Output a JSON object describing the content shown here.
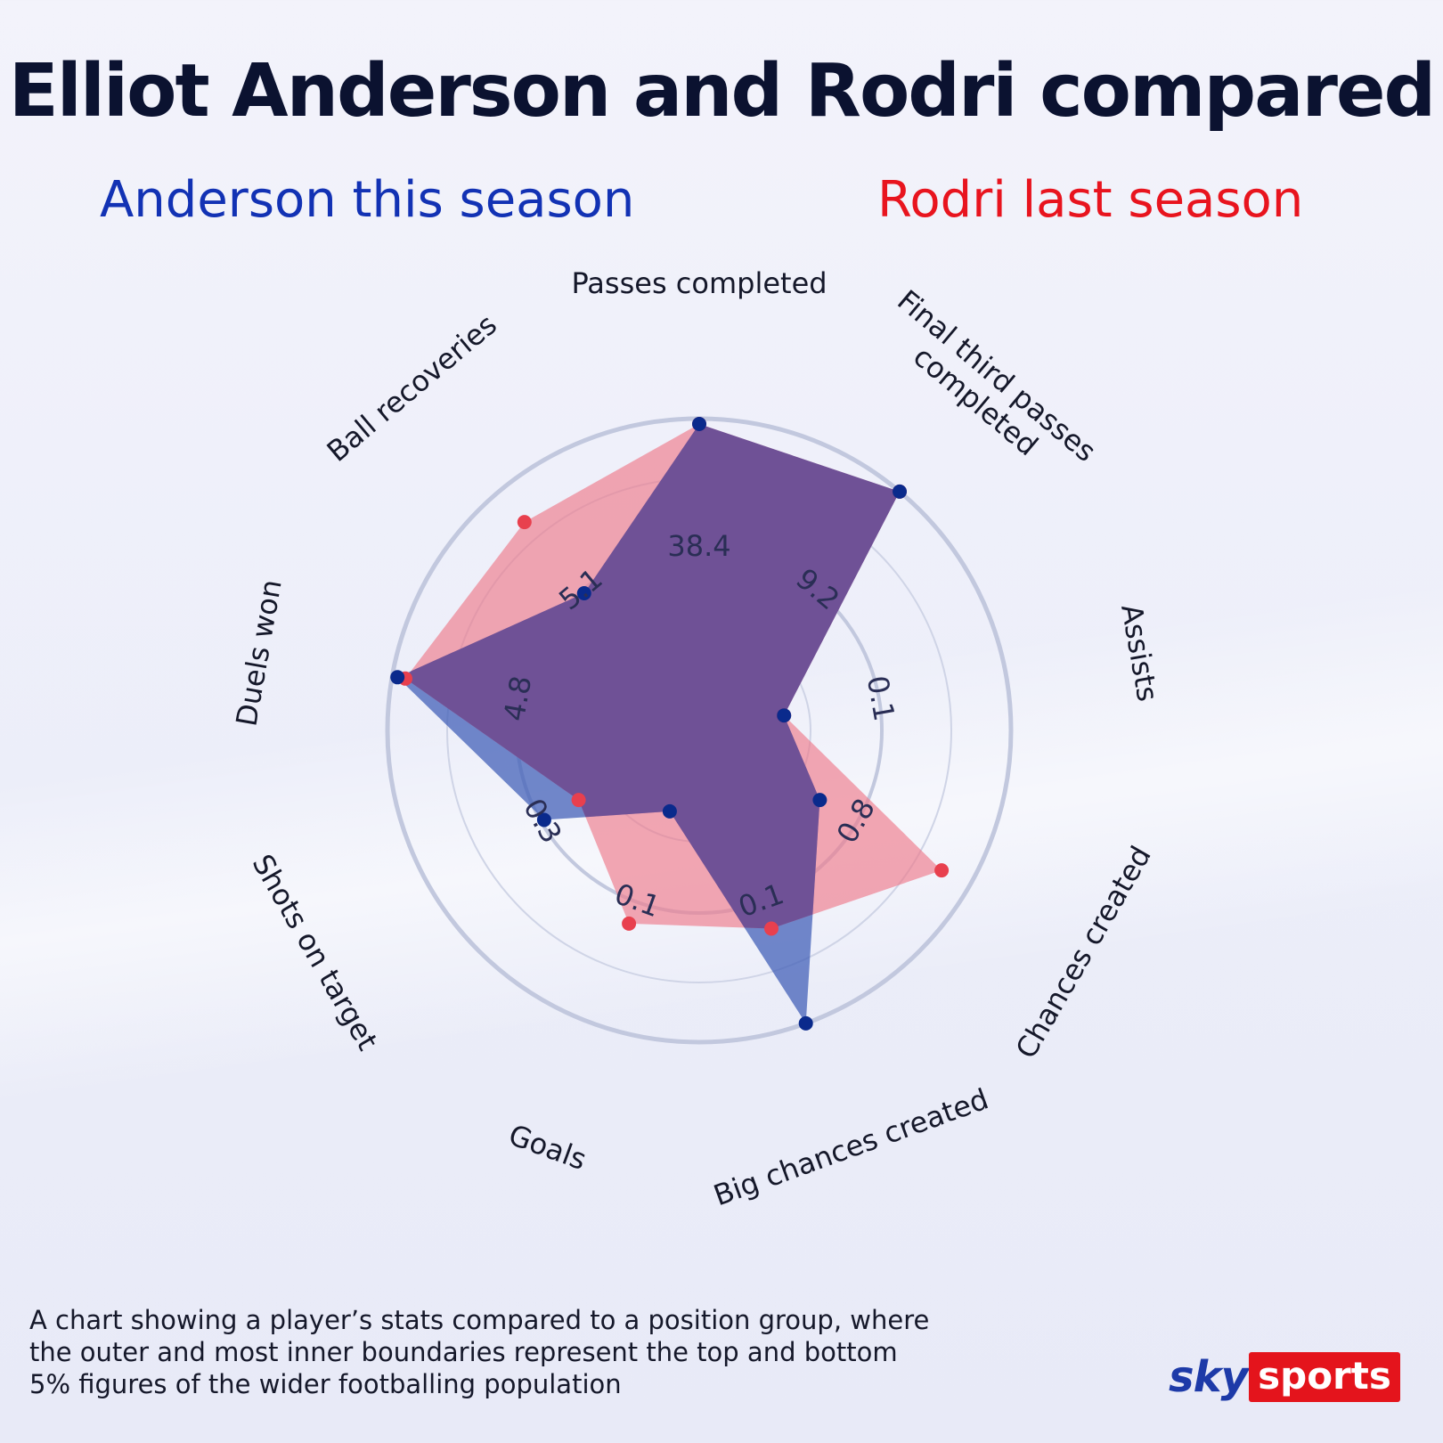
{
  "title": "Elliot Anderson and Rodri compared",
  "legend": {
    "anderson_label": "Anderson this season",
    "rodri_label": "Rodri last season"
  },
  "colors": {
    "anderson": "#1232b4",
    "rodri": "#e8141e",
    "anderson_fill": "#3d5bb5",
    "rodri_fill": "#ee7a8a",
    "overlap_fill": "#6a4f96",
    "anderson_dot": "#0a2a8c",
    "rodri_dot": "#e8404e"
  },
  "chart_data": {
    "type": "radar",
    "scale": "percentile",
    "range": [
      0,
      100
    ],
    "axes": [
      "Passes completed",
      "Final third passes completed",
      "Assists",
      "Chances created",
      "Big chances created",
      "Goals",
      "Shots on target",
      "Duels won",
      "Ball recoveries"
    ],
    "axis_values": [
      "38.4",
      "9.2",
      "0.1",
      "0.8",
      "0.1",
      "0.1",
      "0.3",
      "4.8",
      "5.1"
    ],
    "series": [
      {
        "name": "Anderson this season",
        "values": [
          98,
          100,
          15,
          35,
          100,
          15,
          50,
          98,
          50
        ]
      },
      {
        "name": "Rodri last season",
        "values": [
          98,
          100,
          15,
          88,
          62,
          60,
          35,
          95,
          85
        ]
      }
    ]
  },
  "footnote": {
    "line1": "A chart showing a player’s stats compared to a position group,  where",
    "line2": "the outer and most inner boundaries represent the top  and bottom",
    "line3": "5% figures of the wider footballing population"
  },
  "logo": {
    "sky": "sky",
    "sports": "sports"
  }
}
